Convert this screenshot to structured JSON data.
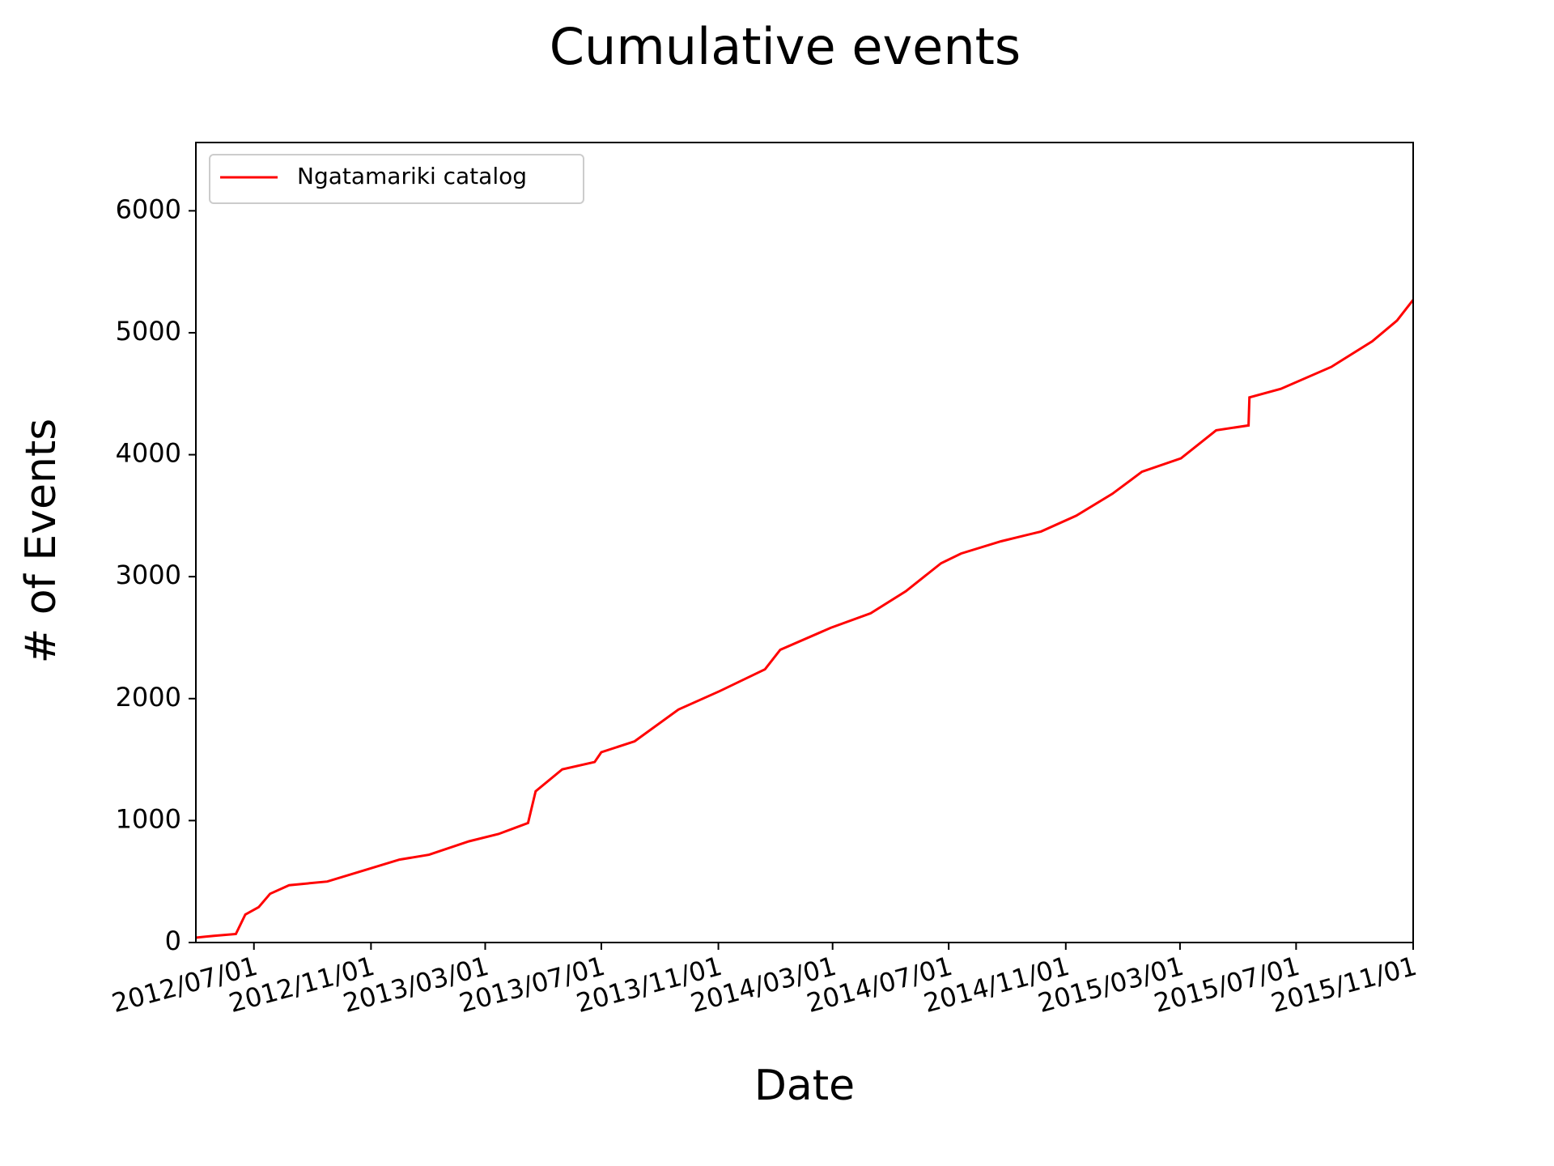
{
  "chart_data": {
    "type": "line",
    "title": "Cumulative events",
    "x_label": "Date",
    "y_label": "# of Events",
    "x": [
      "2012/05/01",
      "2012/05/20",
      "2012/06/12",
      "2012/06/22",
      "2012/07/06",
      "2012/07/18",
      "2012/08/07",
      "2012/09/16",
      "2012/10/20",
      "2012/12/01",
      "2013/01/01",
      "2013/02/12",
      "2013/03/15",
      "2013/04/15",
      "2013/04/23",
      "2013/05/21",
      "2013/06/24",
      "2013/07/01",
      "2013/08/05",
      "2013/09/20",
      "2013/11/02",
      "2013/12/20",
      "2014/01/05",
      "2014/02/27",
      "2014/04/10",
      "2014/05/17",
      "2014/06/23",
      "2014/07/14",
      "2014/08/25",
      "2014/10/06",
      "2014/11/12",
      "2014/12/20",
      "2015/01/20",
      "2015/03/02",
      "2015/04/08",
      "2015/05/12",
      "2015/05/13",
      "2015/06/15",
      "2015/08/07",
      "2015/09/19",
      "2015/10/15",
      "2015/11/01"
    ],
    "series": [
      {
        "name": "Ngatamariki catalog",
        "color": "#ff0000",
        "values": [
          40,
          55,
          70,
          230,
          290,
          400,
          470,
          500,
          580,
          680,
          720,
          830,
          890,
          980,
          1240,
          1420,
          1480,
          1560,
          1650,
          1910,
          2060,
          2240,
          2400,
          2580,
          2700,
          2880,
          3110,
          3190,
          3290,
          3370,
          3500,
          3680,
          3860,
          3970,
          4200,
          4240,
          4470,
          4540,
          4720,
          4930,
          5100,
          5270
        ]
      }
    ],
    "xlim": [
      "2012/05/01",
      "2015/11/01"
    ],
    "xticks": [
      "2012/07/01",
      "2012/11/01",
      "2013/03/01",
      "2013/07/01",
      "2013/11/01",
      "2014/03/01",
      "2014/07/01",
      "2014/11/01",
      "2015/03/01",
      "2015/07/01",
      "2015/11/01"
    ],
    "ylim": [
      0,
      6560
    ],
    "yticks": [
      0,
      1000,
      2000,
      3000,
      4000,
      5000,
      6000
    ],
    "grid": false,
    "legend": "upper left"
  }
}
